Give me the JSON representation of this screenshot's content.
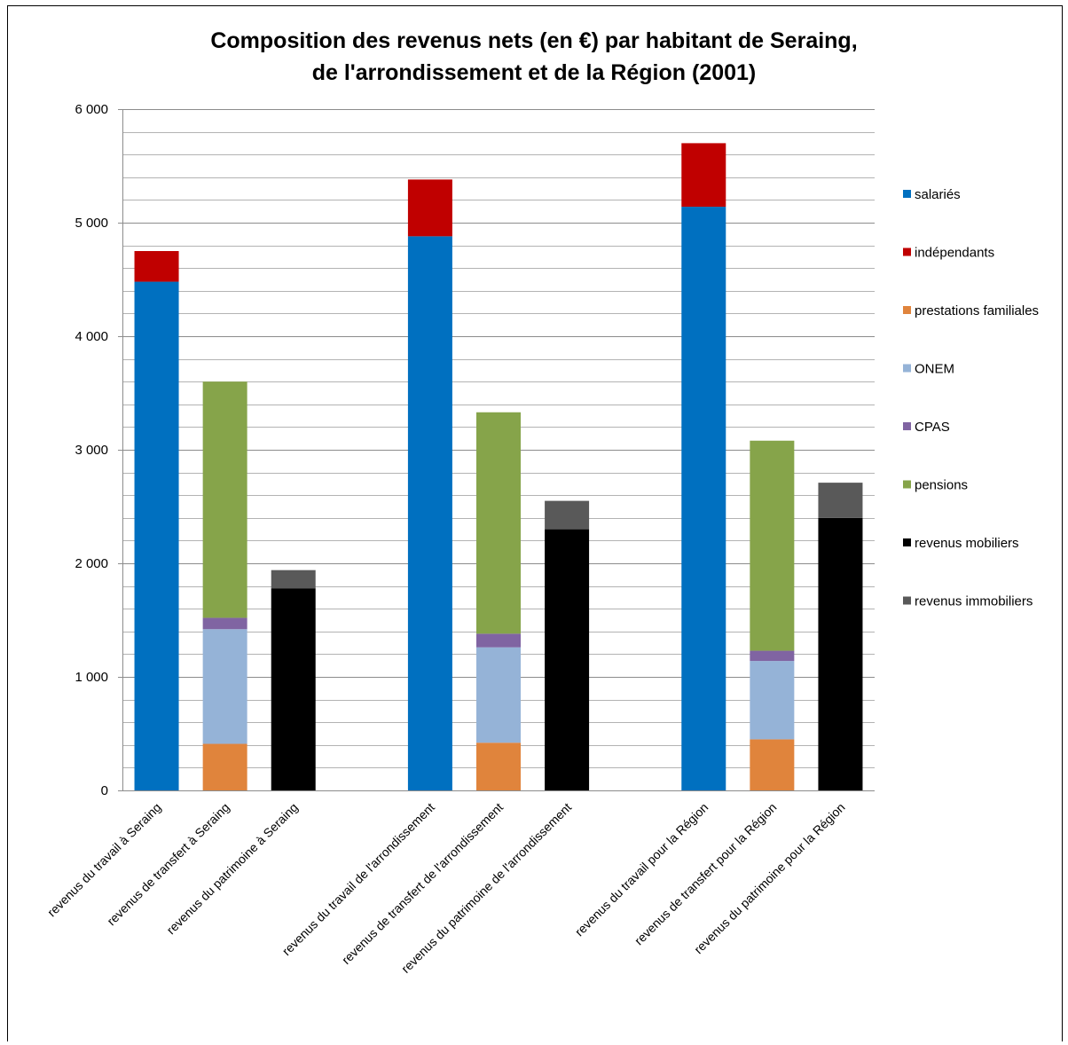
{
  "chart_data": {
    "type": "bar",
    "stacked": true,
    "title": [
      "Composition  des revenus nets (en €) par habitant de Seraing,",
      "de l'arrondissement  et de la Région (2001)"
    ],
    "xlabel": "",
    "ylabel": "",
    "ylim": [
      0,
      6000
    ],
    "yticks": [
      0,
      1000,
      2000,
      3000,
      4000,
      5000,
      6000
    ],
    "ytick_labels": [
      "0",
      "1 000",
      "2 000",
      "3 000",
      "4 000",
      "5 000",
      "6 000"
    ],
    "grid": true,
    "legend_position": "right",
    "categories": [
      "revenus du travail à Seraing",
      "revenus de transfert à Seraing",
      "revenus du patrimoine à Seraing",
      "",
      "revenus du travail de l'arrondissement",
      "revenus de transfert de l'arrondissement",
      "revenus du patrimoine de l'arrondissement",
      "",
      "revenus du travail pour la Région",
      "revenus de transfert pour la Région",
      "revenus du patrimoine pour la Région"
    ],
    "series": [
      {
        "name": "salariés",
        "color": "#0070C0",
        "values": [
          4480,
          0,
          0,
          0,
          4880,
          0,
          0,
          0,
          5140,
          0,
          0
        ]
      },
      {
        "name": "indépendants",
        "color": "#C00000",
        "values": [
          270,
          0,
          0,
          0,
          500,
          0,
          0,
          0,
          560,
          0,
          0
        ]
      },
      {
        "name": "prestations familiales",
        "color": "#E0843C",
        "values": [
          0,
          410,
          0,
          0,
          0,
          420,
          0,
          0,
          0,
          450,
          0
        ]
      },
      {
        "name": "ONEM",
        "color": "#95B3D7",
        "values": [
          0,
          1010,
          0,
          0,
          0,
          840,
          0,
          0,
          0,
          690,
          0
        ]
      },
      {
        "name": "CPAS",
        "color": "#8064A2",
        "values": [
          0,
          100,
          0,
          0,
          0,
          120,
          0,
          0,
          0,
          90,
          0
        ]
      },
      {
        "name": "pensions",
        "color": "#86A44A",
        "values": [
          0,
          2080,
          0,
          0,
          0,
          1950,
          0,
          0,
          0,
          1850,
          0
        ]
      },
      {
        "name": "revenus mobiliers",
        "color": "#000000",
        "values": [
          0,
          0,
          1780,
          0,
          0,
          0,
          2300,
          0,
          0,
          0,
          2400
        ]
      },
      {
        "name": "revenus immobiliers",
        "color": "#595959",
        "values": [
          0,
          0,
          160,
          0,
          0,
          0,
          250,
          0,
          0,
          0,
          310
        ]
      }
    ]
  }
}
